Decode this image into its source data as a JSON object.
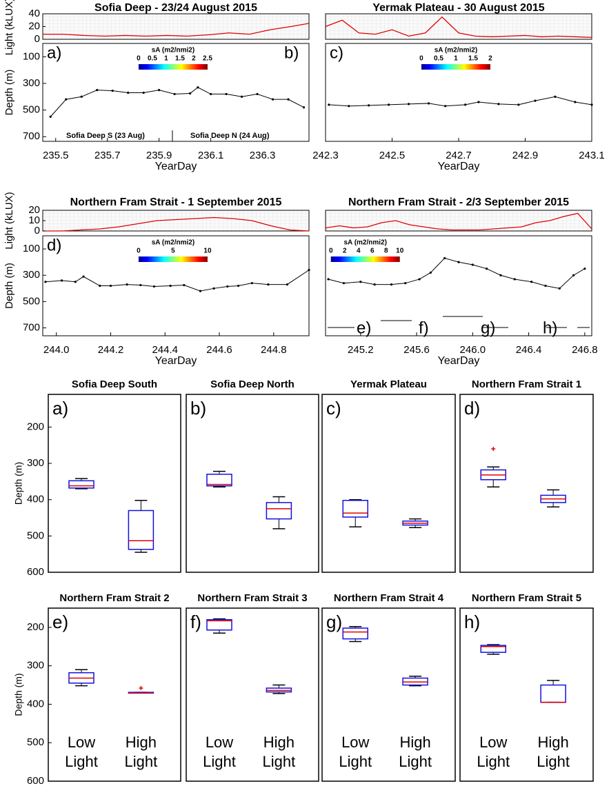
{
  "chart_data": [
    {
      "type": "line",
      "title": "Sofia Deep - 23/24 August 2015",
      "panel_labels": [
        "a)",
        "b)"
      ],
      "annotations": [
        "Sofia Deep S (23 Aug)",
        "Sofia Deep N (24 Aug)"
      ],
      "light": {
        "ylabel": "Light (kLUX)",
        "ylim": [
          0,
          40
        ],
        "yticks": [
          0,
          20,
          40
        ],
        "x": [
          235.45,
          235.53,
          235.61,
          235.69,
          235.77,
          235.85,
          235.93,
          236.01,
          236.09,
          236.17,
          236.25,
          236.33,
          236.41,
          236.48
        ],
        "values": [
          8,
          8,
          6,
          5,
          6,
          5,
          6,
          5,
          7,
          10,
          8,
          15,
          20,
          25
        ]
      },
      "x": [
        235.48,
        235.54,
        235.6,
        235.66,
        235.72,
        235.78,
        235.84,
        235.9,
        235.96,
        236.02,
        236.05,
        236.1,
        236.16,
        236.22,
        236.28,
        236.34,
        236.4,
        236.46
      ],
      "values": [
        550,
        420,
        400,
        350,
        355,
        370,
        370,
        350,
        380,
        375,
        330,
        380,
        380,
        400,
        380,
        420,
        420,
        480
      ],
      "xlim": [
        235.45,
        236.48
      ],
      "xticks": [
        235.5,
        235.7,
        235.9,
        236.1,
        236.3
      ],
      "ylim": [
        0,
        735
      ],
      "yticks": [
        100,
        300,
        500,
        700
      ],
      "xlabel": "YearDay",
      "ylabel": "Depth (m)",
      "colorbar": {
        "label": "sA (m2/nmi2)",
        "ticks": [
          0,
          0.5,
          1,
          1.5,
          2,
          2.5
        ]
      }
    },
    {
      "type": "line",
      "title": "Yermak Plateau - 30 August 2015",
      "panel_labels": [
        "c)"
      ],
      "annotations": [],
      "light": {
        "ylim": [
          0,
          40
        ],
        "x": [
          242.3,
          242.35,
          242.4,
          242.45,
          242.5,
          242.55,
          242.6,
          242.65,
          242.7,
          242.75,
          242.8,
          242.85,
          242.9,
          242.95,
          243.0,
          243.05,
          243.1
        ],
        "values": [
          20,
          30,
          10,
          8,
          15,
          5,
          10,
          35,
          10,
          5,
          4,
          5,
          6,
          4,
          5,
          4,
          3
        ]
      },
      "x": [
        242.31,
        242.37,
        242.43,
        242.49,
        242.55,
        242.61,
        242.66,
        242.72,
        242.76,
        242.82,
        242.88,
        242.93,
        242.99,
        243.05,
        243.1
      ],
      "values": [
        460,
        470,
        465,
        460,
        455,
        450,
        470,
        460,
        440,
        455,
        460,
        430,
        400,
        440,
        460
      ],
      "xlim": [
        242.3,
        243.1
      ],
      "xticks": [
        242.3,
        242.5,
        242.7,
        242.9,
        243.1
      ],
      "ylim": [
        0,
        735
      ],
      "xlabel": "YearDay",
      "colorbar": {
        "label": "sA (m2/nmi2)",
        "ticks": [
          0,
          0.5,
          1,
          1.5,
          2
        ]
      }
    },
    {
      "type": "line",
      "title": "Northern Fram Strait - 1 September 2015",
      "panel_labels": [
        "d)"
      ],
      "annotations": [],
      "light": {
        "ylabel": "Light (kLUX)",
        "ylim": [
          0,
          20
        ],
        "yticks": [
          0,
          10,
          20
        ],
        "x": [
          243.95,
          244.02,
          244.09,
          244.16,
          244.23,
          244.3,
          244.37,
          244.44,
          244.51,
          244.58,
          244.65,
          244.72,
          244.79,
          244.86,
          244.93
        ],
        "values": [
          0,
          0,
          1,
          2,
          4,
          7,
          10,
          11,
          12,
          13,
          12,
          10,
          5,
          1,
          0
        ]
      },
      "x": [
        243.96,
        244.02,
        244.07,
        244.1,
        244.16,
        244.2,
        244.26,
        244.31,
        244.36,
        244.42,
        244.47,
        244.53,
        244.58,
        244.63,
        244.67,
        244.72,
        244.78,
        244.85,
        244.93
      ],
      "values": [
        350,
        340,
        350,
        310,
        380,
        380,
        370,
        375,
        385,
        380,
        375,
        420,
        400,
        385,
        380,
        360,
        370,
        370,
        260
      ],
      "xlim": [
        243.95,
        244.93
      ],
      "xticks": [
        {
          "value": 244,
          "label": "244.0"
        },
        244.2,
        244.4,
        244.6,
        244.8
      ],
      "ylim": [
        0,
        760
      ],
      "yticks": [
        100,
        300,
        500,
        700
      ],
      "xlabel": "YearDay",
      "ylabel": "Depth (m)",
      "colorbar": {
        "label": "sA (m2/nmi2)",
        "ticks": [
          0,
          5,
          10
        ]
      }
    },
    {
      "type": "line",
      "title": "Northern Fram Strait - 2/3 September 2015",
      "panel_labels": [
        "e)",
        "f)",
        "g)",
        "h)"
      ],
      "annotations": [],
      "light": {
        "ylim": [
          0,
          20
        ],
        "x": [
          244.95,
          245.05,
          245.15,
          245.25,
          245.35,
          245.45,
          245.55,
          245.65,
          245.75,
          245.85,
          245.95,
          246.05,
          246.15,
          246.25,
          246.35,
          246.45,
          246.55,
          246.65,
          246.75,
          246.85
        ],
        "values": [
          3,
          5,
          3,
          4,
          8,
          10,
          6,
          4,
          2,
          1,
          1,
          1,
          2,
          3,
          4,
          8,
          10,
          14,
          17,
          2
        ]
      },
      "x": [
        244.97,
        245.08,
        245.2,
        245.3,
        245.42,
        245.52,
        245.62,
        245.7,
        245.8,
        245.9,
        246.0,
        246.1,
        246.2,
        246.3,
        246.42,
        246.52,
        246.62,
        246.72,
        246.8
      ],
      "values": [
        330,
        360,
        350,
        370,
        370,
        360,
        330,
        280,
        170,
        200,
        220,
        250,
        300,
        330,
        350,
        380,
        400,
        300,
        250
      ],
      "xlim": [
        244.95,
        246.85
      ],
      "xticks": [
        245.2,
        245.6,
        {
          "value": 246,
          "label": "246.0"
        },
        246.4,
        246.8
      ],
      "ylim": [
        0,
        760
      ],
      "xlabel": "YearDay",
      "colorbar": {
        "label": "sA (m2/nmi2)",
        "ticks": [
          0,
          2,
          4,
          6,
          8,
          10
        ]
      }
    },
    {
      "type": "box",
      "title": "Sofia Deep South",
      "panel_label": "a)",
      "ylabel": "Depth (m)",
      "ylim": [
        110,
        600
      ],
      "yticks": [
        200,
        300,
        400,
        500,
        600
      ],
      "boxes": [
        {
          "whislo": 342,
          "q1": 348,
          "med": 362,
          "q3": 368,
          "whishi": 370,
          "fliers": []
        },
        {
          "whislo": 402,
          "q1": 430,
          "med": 513,
          "q3": 537,
          "whishi": 545,
          "fliers": []
        }
      ]
    },
    {
      "type": "box",
      "title": "Sofia Deep North",
      "panel_label": "b)",
      "ylim": [
        110,
        600
      ],
      "boxes": [
        {
          "whislo": 322,
          "q1": 330,
          "med": 358,
          "q3": 362,
          "whishi": 365,
          "fliers": []
        },
        {
          "whislo": 392,
          "q1": 408,
          "med": 425,
          "q3": 453,
          "whishi": 480,
          "fliers": []
        }
      ]
    },
    {
      "type": "box",
      "title": "Yermak Plateau",
      "panel_label": "c)",
      "ylim": [
        110,
        600
      ],
      "boxes": [
        {
          "whislo": 400,
          "q1": 402,
          "med": 437,
          "q3": 448,
          "whishi": 475,
          "fliers": []
        },
        {
          "whislo": 453,
          "q1": 459,
          "med": 465,
          "q3": 470,
          "whishi": 477,
          "fliers": []
        }
      ]
    },
    {
      "type": "box",
      "title": "Northern Fram Strait 1",
      "panel_label": "d)",
      "ylim": [
        110,
        600
      ],
      "boxes": [
        {
          "whislo": 310,
          "q1": 318,
          "med": 332,
          "q3": 345,
          "whishi": 365,
          "fliers": [
            260
          ]
        },
        {
          "whislo": 373,
          "q1": 388,
          "med": 398,
          "q3": 408,
          "whishi": 420,
          "fliers": []
        }
      ]
    },
    {
      "type": "box",
      "title": "Northern Fram Strait 2",
      "panel_label": "e)",
      "ylabel": "Depth (m)",
      "ylim": [
        150,
        600
      ],
      "yticks": [
        200,
        300,
        400,
        500,
        600
      ],
      "categories": [
        "Low Light",
        "High Light"
      ],
      "boxes": [
        {
          "whislo": 310,
          "q1": 318,
          "med": 332,
          "q3": 345,
          "whishi": 352,
          "fliers": []
        },
        {
          "whislo": 369,
          "q1": 369,
          "med": 370,
          "q3": 371,
          "whishi": 371,
          "fliers": [
            358
          ]
        }
      ]
    },
    {
      "type": "box",
      "title": "Northern Fram Strait 3",
      "panel_label": "f)",
      "ylim": [
        150,
        600
      ],
      "categories": [
        "Low Light",
        "High Light"
      ],
      "boxes": [
        {
          "whislo": 178,
          "q1": 180,
          "med": 183,
          "q3": 207,
          "whishi": 215,
          "fliers": []
        },
        {
          "whislo": 350,
          "q1": 358,
          "med": 364,
          "q3": 368,
          "whishi": 372,
          "fliers": []
        }
      ]
    },
    {
      "type": "box",
      "title": "Northern Fram Strait 4",
      "panel_label": "g)",
      "ylim": [
        150,
        600
      ],
      "categories": [
        "Low Light",
        "High Light"
      ],
      "boxes": [
        {
          "whislo": 198,
          "q1": 202,
          "med": 212,
          "q3": 230,
          "whishi": 237,
          "fliers": []
        },
        {
          "whislo": 327,
          "q1": 332,
          "med": 342,
          "q3": 350,
          "whishi": 352,
          "fliers": []
        }
      ]
    },
    {
      "type": "box",
      "title": "Northern Fram Strait 5",
      "panel_label": "h)",
      "ylim": [
        150,
        600
      ],
      "categories": [
        "Low Light",
        "High Light"
      ],
      "boxes": [
        {
          "whislo": 245,
          "q1": 247,
          "med": 250,
          "q3": 265,
          "whishi": 270,
          "fliers": []
        },
        {
          "whislo": 338,
          "q1": 350,
          "med": 395,
          "q3": 395,
          "whishi": 395,
          "fliers": []
        }
      ]
    }
  ]
}
